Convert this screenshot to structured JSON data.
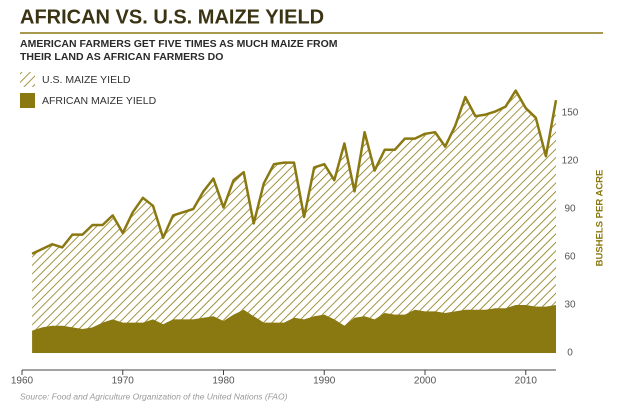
{
  "chart_data": {
    "type": "area",
    "title": "AFRICAN VS. U.S. MAIZE YIELD",
    "subtitle": [
      "AMERICAN FARMERS GET FIVE TIMES AS MUCH MAIZE FROM",
      "THEIR LAND AS AFRICAN FARMERS DO"
    ],
    "y_axis_label": "BUSHELS PER ACRE",
    "source": "Source: Food and Agriculture Organization of the United Nations (FAO)",
    "x": [
      1961,
      1962,
      1963,
      1964,
      1965,
      1966,
      1967,
      1968,
      1969,
      1970,
      1971,
      1972,
      1973,
      1974,
      1975,
      1976,
      1977,
      1978,
      1979,
      1980,
      1981,
      1982,
      1983,
      1984,
      1985,
      1986,
      1987,
      1988,
      1989,
      1990,
      1991,
      1992,
      1993,
      1994,
      1995,
      1996,
      1997,
      1998,
      1999,
      2000,
      2001,
      2002,
      2003,
      2004,
      2005,
      2006,
      2007,
      2008,
      2009,
      2010,
      2011,
      2012,
      2013
    ],
    "series": [
      {
        "name": "U.S. MAIZE YIELD",
        "color": "#8a7810",
        "pattern": "hatch",
        "values": [
          62,
          65,
          68,
          66,
          74,
          74,
          80,
          80,
          86,
          75,
          88,
          97,
          92,
          72,
          86,
          88,
          90,
          101,
          109,
          91,
          108,
          113,
          81,
          106,
          118,
          119,
          119,
          85,
          116,
          118,
          108,
          131,
          101,
          138,
          114,
          127,
          127,
          134,
          134,
          137,
          138,
          129,
          142,
          160,
          148,
          149,
          151,
          154,
          164,
          153,
          147,
          123,
          158
        ]
      },
      {
        "name": "AFRICAN MAIZE YIELD",
        "color": "#8a7810",
        "pattern": "solid",
        "values": [
          14,
          16,
          17,
          17,
          16,
          15,
          16,
          19,
          21,
          19,
          19,
          19,
          21,
          18,
          21,
          21,
          21,
          22,
          23,
          20,
          24,
          27,
          23,
          19,
          19,
          19,
          22,
          21,
          23,
          24,
          21,
          17,
          22,
          23,
          21,
          25,
          24,
          24,
          27,
          26,
          26,
          25,
          26,
          27,
          27,
          27,
          28,
          28,
          30,
          30,
          29,
          29,
          30
        ]
      }
    ],
    "xlim": [
      1960,
      2013
    ],
    "xticks": [
      1960,
      1970,
      1980,
      1990,
      2000,
      2010
    ],
    "ylim": [
      0,
      170
    ],
    "yticks": [
      0,
      30,
      60,
      90,
      120,
      150
    ]
  }
}
